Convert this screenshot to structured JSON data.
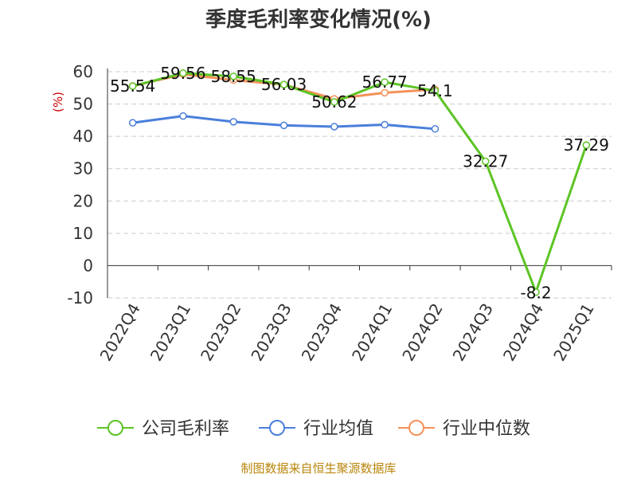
{
  "chart_data": {
    "type": "line",
    "title": "季度毛利率变化情况(%)",
    "ylabel": "(%)",
    "xlabel": "",
    "categories": [
      "2022Q4",
      "2023Q1",
      "2023Q2",
      "2023Q3",
      "2023Q4",
      "2024Q1",
      "2024Q2",
      "2024Q3",
      "2024Q4",
      "2025Q1"
    ],
    "ylim": [
      -10,
      60
    ],
    "yticks": [
      "-10",
      "0",
      "10",
      "20",
      "30",
      "40",
      "50",
      "60"
    ],
    "grid": true,
    "legend_position": "bottom",
    "series": [
      {
        "name": "公司毛利率",
        "color": "#5cc424",
        "values": [
          55.54,
          59.56,
          58.55,
          56.03,
          50.62,
          56.77,
          54.1,
          32.27,
          -8.2,
          37.29
        ],
        "labels": [
          "55.54",
          "59.56",
          "58.55",
          "56.03",
          "50.62",
          "56.77",
          "54.1",
          "32.27",
          "-8.2",
          "37.29"
        ]
      },
      {
        "name": "行业均值",
        "color": "#4a7fdb",
        "values": [
          44.2,
          46.3,
          44.5,
          43.4,
          43.0,
          43.6,
          42.3,
          null,
          null,
          null
        ]
      },
      {
        "name": "行业中位数",
        "color": "#f5915a",
        "values": [
          55.6,
          59.2,
          57.4,
          56.0,
          51.6,
          53.5,
          54.5,
          null,
          null,
          null
        ]
      }
    ]
  },
  "footer": {
    "source": "制图数据来自恒生聚源数据库"
  }
}
